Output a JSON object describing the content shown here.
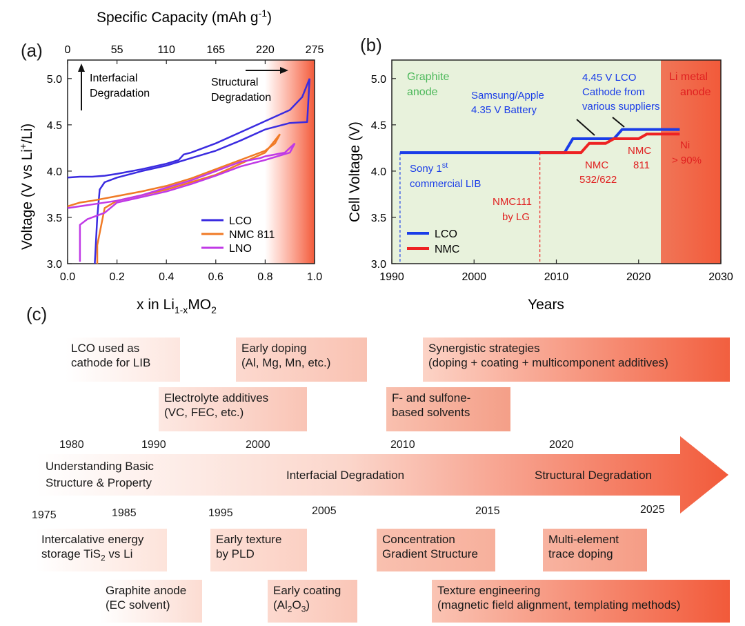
{
  "chart_data": [
    {
      "panel": "(a)",
      "type": "line",
      "xlabel": "x in Li1-xMO2",
      "ylabel": "Voltage (V vs Li+/Li)",
      "x2label": "Specific Capacity (mAh g-1)",
      "xlim": [
        0.0,
        1.0
      ],
      "ylim": [
        3.0,
        5.2
      ],
      "xticks": [
        "0.0",
        "0.2",
        "0.4",
        "0.6",
        "0.8",
        "1.0"
      ],
      "yticks": [
        "3.0",
        "3.5",
        "4.0",
        "4.5",
        "5.0"
      ],
      "x2ticks": [
        "0",
        "55",
        "110",
        "165",
        "220",
        "275"
      ],
      "annotations": [
        "Interfacial Degradation",
        "Structural Degradation"
      ],
      "legend_position": "bottom-right",
      "series": [
        {
          "name": "LCO",
          "color": "#3a2be0",
          "charge": [
            [
              0.0,
              3.93
            ],
            [
              0.05,
              3.94
            ],
            [
              0.1,
              3.94
            ],
            [
              0.15,
              3.95
            ],
            [
              0.2,
              3.97
            ],
            [
              0.3,
              4.02
            ],
            [
              0.4,
              4.08
            ],
            [
              0.45,
              4.12
            ],
            [
              0.47,
              4.18
            ],
            [
              0.5,
              4.2
            ],
            [
              0.6,
              4.3
            ],
            [
              0.7,
              4.42
            ],
            [
              0.8,
              4.54
            ],
            [
              0.9,
              4.66
            ],
            [
              0.95,
              4.8
            ],
            [
              0.98,
              5.0
            ]
          ],
          "discharge": [
            [
              0.98,
              5.0
            ],
            [
              0.97,
              4.53
            ],
            [
              0.9,
              4.52
            ],
            [
              0.8,
              4.45
            ],
            [
              0.7,
              4.33
            ],
            [
              0.6,
              4.22
            ],
            [
              0.5,
              4.14
            ],
            [
              0.4,
              4.06
            ],
            [
              0.3,
              4.0
            ],
            [
              0.2,
              3.93
            ],
            [
              0.15,
              3.88
            ],
            [
              0.13,
              3.8
            ],
            [
              0.12,
              3.5
            ],
            [
              0.11,
              3.0
            ]
          ]
        },
        {
          "name": "NMC 811",
          "color": "#f07a25",
          "charge": [
            [
              0.0,
              3.62
            ],
            [
              0.05,
              3.66
            ],
            [
              0.1,
              3.68
            ],
            [
              0.2,
              3.73
            ],
            [
              0.3,
              3.78
            ],
            [
              0.4,
              3.84
            ],
            [
              0.5,
              3.92
            ],
            [
              0.6,
              4.02
            ],
            [
              0.7,
              4.12
            ],
            [
              0.8,
              4.22
            ],
            [
              0.84,
              4.3
            ],
            [
              0.86,
              4.4
            ]
          ],
          "discharge": [
            [
              0.86,
              4.4
            ],
            [
              0.8,
              4.2
            ],
            [
              0.7,
              4.08
            ],
            [
              0.6,
              3.96
            ],
            [
              0.5,
              3.88
            ],
            [
              0.4,
              3.8
            ],
            [
              0.3,
              3.74
            ],
            [
              0.2,
              3.68
            ],
            [
              0.15,
              3.6
            ],
            [
              0.12,
              3.2
            ],
            [
              0.12,
              3.0
            ]
          ]
        },
        {
          "name": "LNO",
          "color": "#c03ae6",
          "charge": [
            [
              0.0,
              3.6
            ],
            [
              0.1,
              3.64
            ],
            [
              0.2,
              3.68
            ],
            [
              0.3,
              3.74
            ],
            [
              0.4,
              3.82
            ],
            [
              0.5,
              3.9
            ],
            [
              0.6,
              4.0
            ],
            [
              0.7,
              4.1
            ],
            [
              0.78,
              4.14
            ],
            [
              0.8,
              4.16
            ],
            [
              0.88,
              4.2
            ],
            [
              0.92,
              4.3
            ]
          ],
          "discharge": [
            [
              0.92,
              4.3
            ],
            [
              0.9,
              4.2
            ],
            [
              0.8,
              4.12
            ],
            [
              0.7,
              4.05
            ],
            [
              0.6,
              3.95
            ],
            [
              0.5,
              3.86
            ],
            [
              0.4,
              3.78
            ],
            [
              0.3,
              3.72
            ],
            [
              0.2,
              3.66
            ],
            [
              0.15,
              3.55
            ],
            [
              0.08,
              3.48
            ],
            [
              0.05,
              3.42
            ],
            [
              0.05,
              3.02
            ]
          ]
        }
      ]
    },
    {
      "panel": "(b)",
      "type": "line",
      "xlabel": "Years",
      "ylabel": "Cell Voltage (V)",
      "xlim": [
        1990,
        2030
      ],
      "ylim": [
        3.0,
        5.2
      ],
      "xticks": [
        "1990",
        "2000",
        "2010",
        "2020",
        "2030"
      ],
      "yticks": [
        "3.0",
        "3.5",
        "4.0",
        "4.5",
        "5.0"
      ],
      "legend_position": "bottom-left",
      "regions": [
        "Graphite anode",
        "Li metal anode"
      ],
      "series": [
        {
          "name": "LCO",
          "color": "#1a3de8",
          "points": [
            [
              1991,
              4.2
            ],
            [
              2008,
              4.2
            ],
            [
              2011,
              4.2
            ],
            [
              2012,
              4.35
            ],
            [
              2017,
              4.35
            ],
            [
              2018,
              4.45
            ],
            [
              2025,
              4.45
            ]
          ]
        },
        {
          "name": "NMC",
          "color": "#ee2222",
          "points": [
            [
              2008,
              4.2
            ],
            [
              2013,
              4.2
            ],
            [
              2014,
              4.3
            ],
            [
              2016,
              4.3
            ],
            [
              2017,
              4.35
            ],
            [
              2020,
              4.35
            ],
            [
              2021,
              4.4
            ],
            [
              2025,
              4.4
            ]
          ]
        }
      ],
      "markers": [
        {
          "year": 1991
        },
        {
          "year": 2008
        }
      ],
      "annotations": [
        {
          "text": "Sony 1st commercial LIB",
          "color": "#1a3de8"
        },
        {
          "text": "NMC111 by LG",
          "color": "#ee2222"
        },
        {
          "text": "Samsung/Apple 4.35 V Battery",
          "color": "#1a3de8"
        },
        {
          "text": "4.45 V LCO Cathode from various suppliers",
          "color": "#1a3de8"
        },
        {
          "text": "NMC 532/622",
          "color": "#ee2222"
        },
        {
          "text": "NMC 811",
          "color": "#ee2222"
        },
        {
          "text": "Ni > 90%",
          "color": "#ee2222"
        }
      ]
    }
  ],
  "panel_a": {
    "label": "(a)",
    "top_title": "Specific Capacity (mAh g",
    "top_sup": "-1",
    "top_end": ")",
    "xlabel_main": "x in Li",
    "xlabel_sub": "1-x",
    "xlabel_mo": "MO",
    "xlabel_2": "2",
    "ylabel_a": "Voltage (V vs Li",
    "ylabel_sup": "+",
    "ylabel_b": "/Li)",
    "interfacial_1": "Interfacial",
    "interfacial_2": "Degradation",
    "structural_1": "Structural",
    "structural_2": "Degradation",
    "legend": [
      "LCO",
      "NMC 811",
      "LNO"
    ]
  },
  "panel_b": {
    "label": "(b)",
    "ylabel": "Cell Voltage (V)",
    "xlabel": "Years",
    "graphite_1": "Graphite",
    "graphite_2": "anode",
    "limetal_1": "Li metal",
    "limetal_2": "anode",
    "sony_1": "Sony 1",
    "sony_sup": "st",
    "sony_2": "commercial LIB",
    "nmc111_1": "NMC111",
    "nmc111_2": "by LG",
    "samsung_1": "Samsung/Apple",
    "samsung_2": "4.35 V Battery",
    "lco445_1": "4.45 V LCO",
    "lco445_2": "Cathode from",
    "lco445_3": "various suppliers",
    "nmc532_1": "NMC",
    "nmc532_2": "532/622",
    "nmc811_1": "NMC",
    "nmc811_2": "811",
    "ni_1": "Ni",
    "ni_2": "> 90%",
    "legend": [
      "LCO",
      "NMC"
    ]
  },
  "panel_c": {
    "label": "(c)",
    "boxes_top": [
      {
        "l1": "LCO used as",
        "l2": "cathode for LIB"
      },
      {
        "l1": "Early doping",
        "l2": "(Al, Mg, Mn, etc.)"
      },
      {
        "l1": "Synergistic strategies",
        "l2": "(doping + coating + multicomponent additives)"
      },
      {
        "l1": "Electrolyte additives",
        "l2": "(VC, FEC, etc.)"
      },
      {
        "l1": "F- and sulfone-",
        "l2": "based solvents"
      }
    ],
    "boxes_bottom": [
      {
        "l1": "Intercalative energy",
        "l2a": "storage TiS",
        "l2sub": "2",
        "l2b": " vs Li"
      },
      {
        "l1": "Early texture",
        "l2": "by PLD"
      },
      {
        "l1": "Concentration",
        "l2": "Gradient Structure"
      },
      {
        "l1": "Multi-element",
        "l2": "trace doping"
      },
      {
        "l1": "Graphite anode",
        "l2": "(EC solvent)"
      },
      {
        "l1": "Early coating",
        "l2a": "(Al",
        "l2sub": "2",
        "l2b": "O",
        "l2sub2": "3",
        "l2c": ")"
      },
      {
        "l1": "Texture engineering",
        "l2": "(magnetic field alignment, templating methods)"
      }
    ],
    "years_top": [
      "1980",
      "1990",
      "2000",
      "2010",
      "2020"
    ],
    "years_bottom": [
      "1975",
      "1985",
      "1995",
      "2005",
      "2015",
      "2025"
    ],
    "arrow_text": [
      "Understanding Basic",
      "Structure & Property",
      "Interfacial Degradation",
      "Structural Degradation"
    ]
  }
}
